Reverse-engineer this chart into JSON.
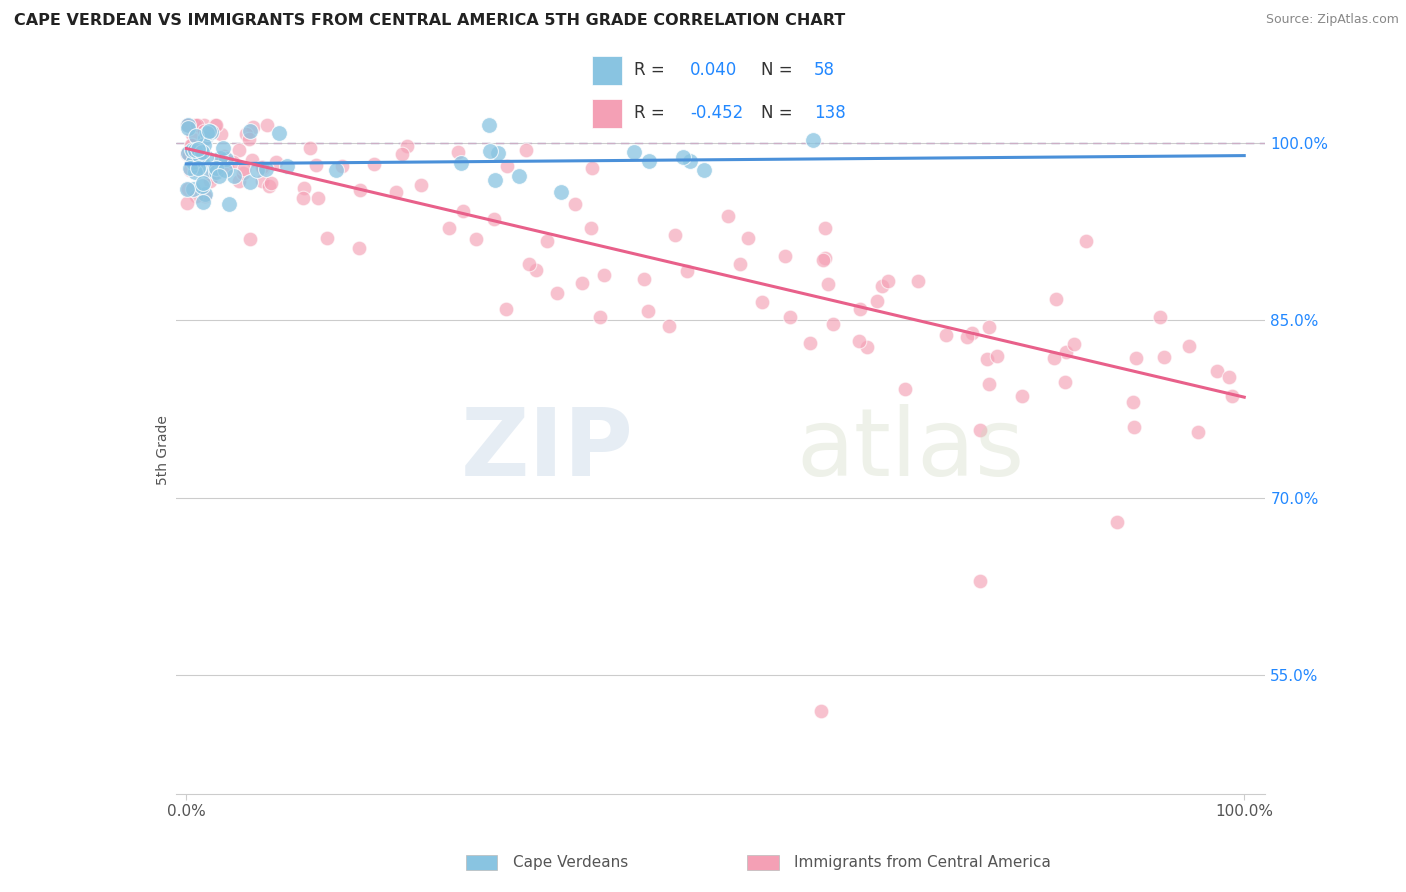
{
  "title": "CAPE VERDEAN VS IMMIGRANTS FROM CENTRAL AMERICA 5TH GRADE CORRELATION CHART",
  "source": "Source: ZipAtlas.com",
  "ylabel": "5th Grade",
  "watermark": "ZIPatlas",
  "blue_R": 0.04,
  "blue_N": 58,
  "pink_R": -0.452,
  "pink_N": 138,
  "blue_color": "#89c4e1",
  "pink_color": "#f4a0b5",
  "blue_line_color": "#4a90d9",
  "pink_line_color": "#e8608a",
  "legend_color_R_N": "#2288ff",
  "ymin": 45.0,
  "ymax": 103.0,
  "xmin": -1.0,
  "xmax": 102.0,
  "right_yticks": [
    55.0,
    70.0,
    85.0,
    100.0
  ],
  "right_ytick_labels": [
    "55.0%",
    "70.0%",
    "85.0%",
    "100.0%"
  ],
  "blue_trend_x0": 0.0,
  "blue_trend_y0": 98.2,
  "blue_trend_x1": 100.0,
  "blue_trend_y1": 98.9,
  "pink_trend_x0": 0.0,
  "pink_trend_y0": 99.5,
  "pink_trend_x1": 100.0,
  "pink_trend_y1": 78.5
}
